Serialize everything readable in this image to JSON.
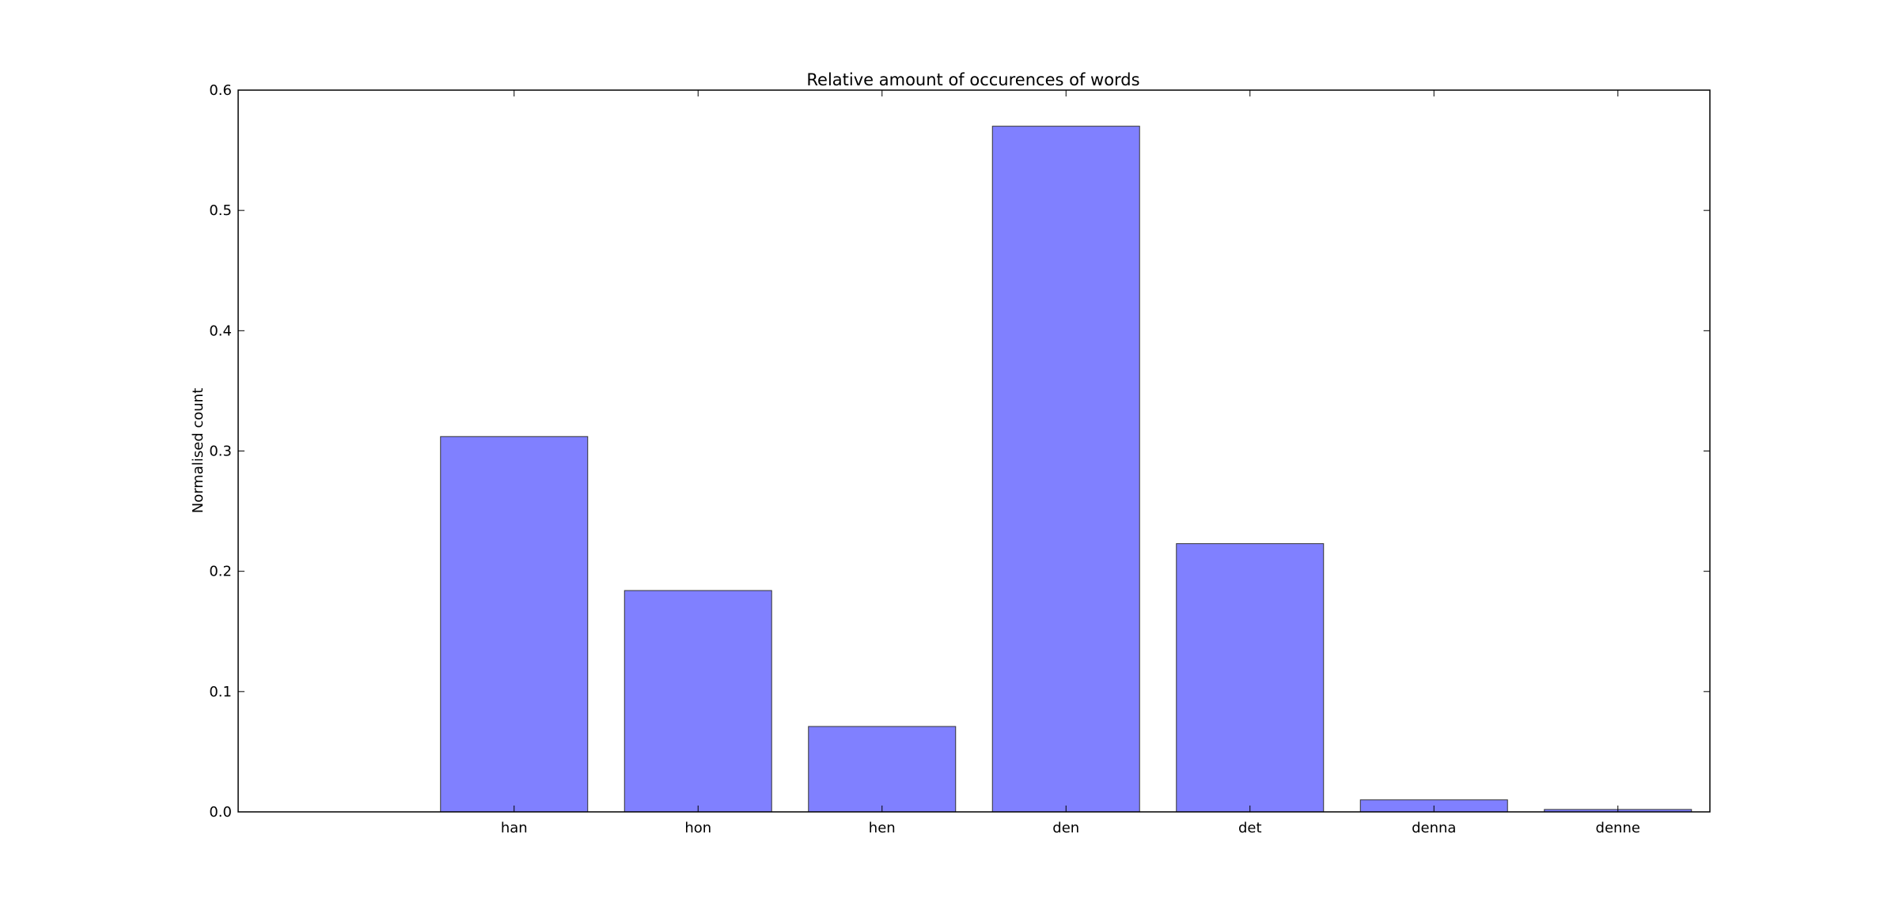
{
  "chart_data": {
    "type": "bar",
    "title": "Relative amount of occurences of words",
    "xlabel": "",
    "ylabel": "Normalised count",
    "categories": [
      "han",
      "hon",
      "hen",
      "den",
      "det",
      "denna",
      "denne"
    ],
    "values": [
      0.312,
      0.184,
      0.071,
      0.57,
      0.223,
      0.01,
      0.002
    ],
    "ylim": [
      0,
      0.6
    ],
    "yticks": [
      "0.0",
      "0.1",
      "0.2",
      "0.3",
      "0.4",
      "0.5",
      "0.6"
    ],
    "bar_color": "#8080ff",
    "bar_edge_color": "#333333",
    "grid": false,
    "legend": "none"
  }
}
